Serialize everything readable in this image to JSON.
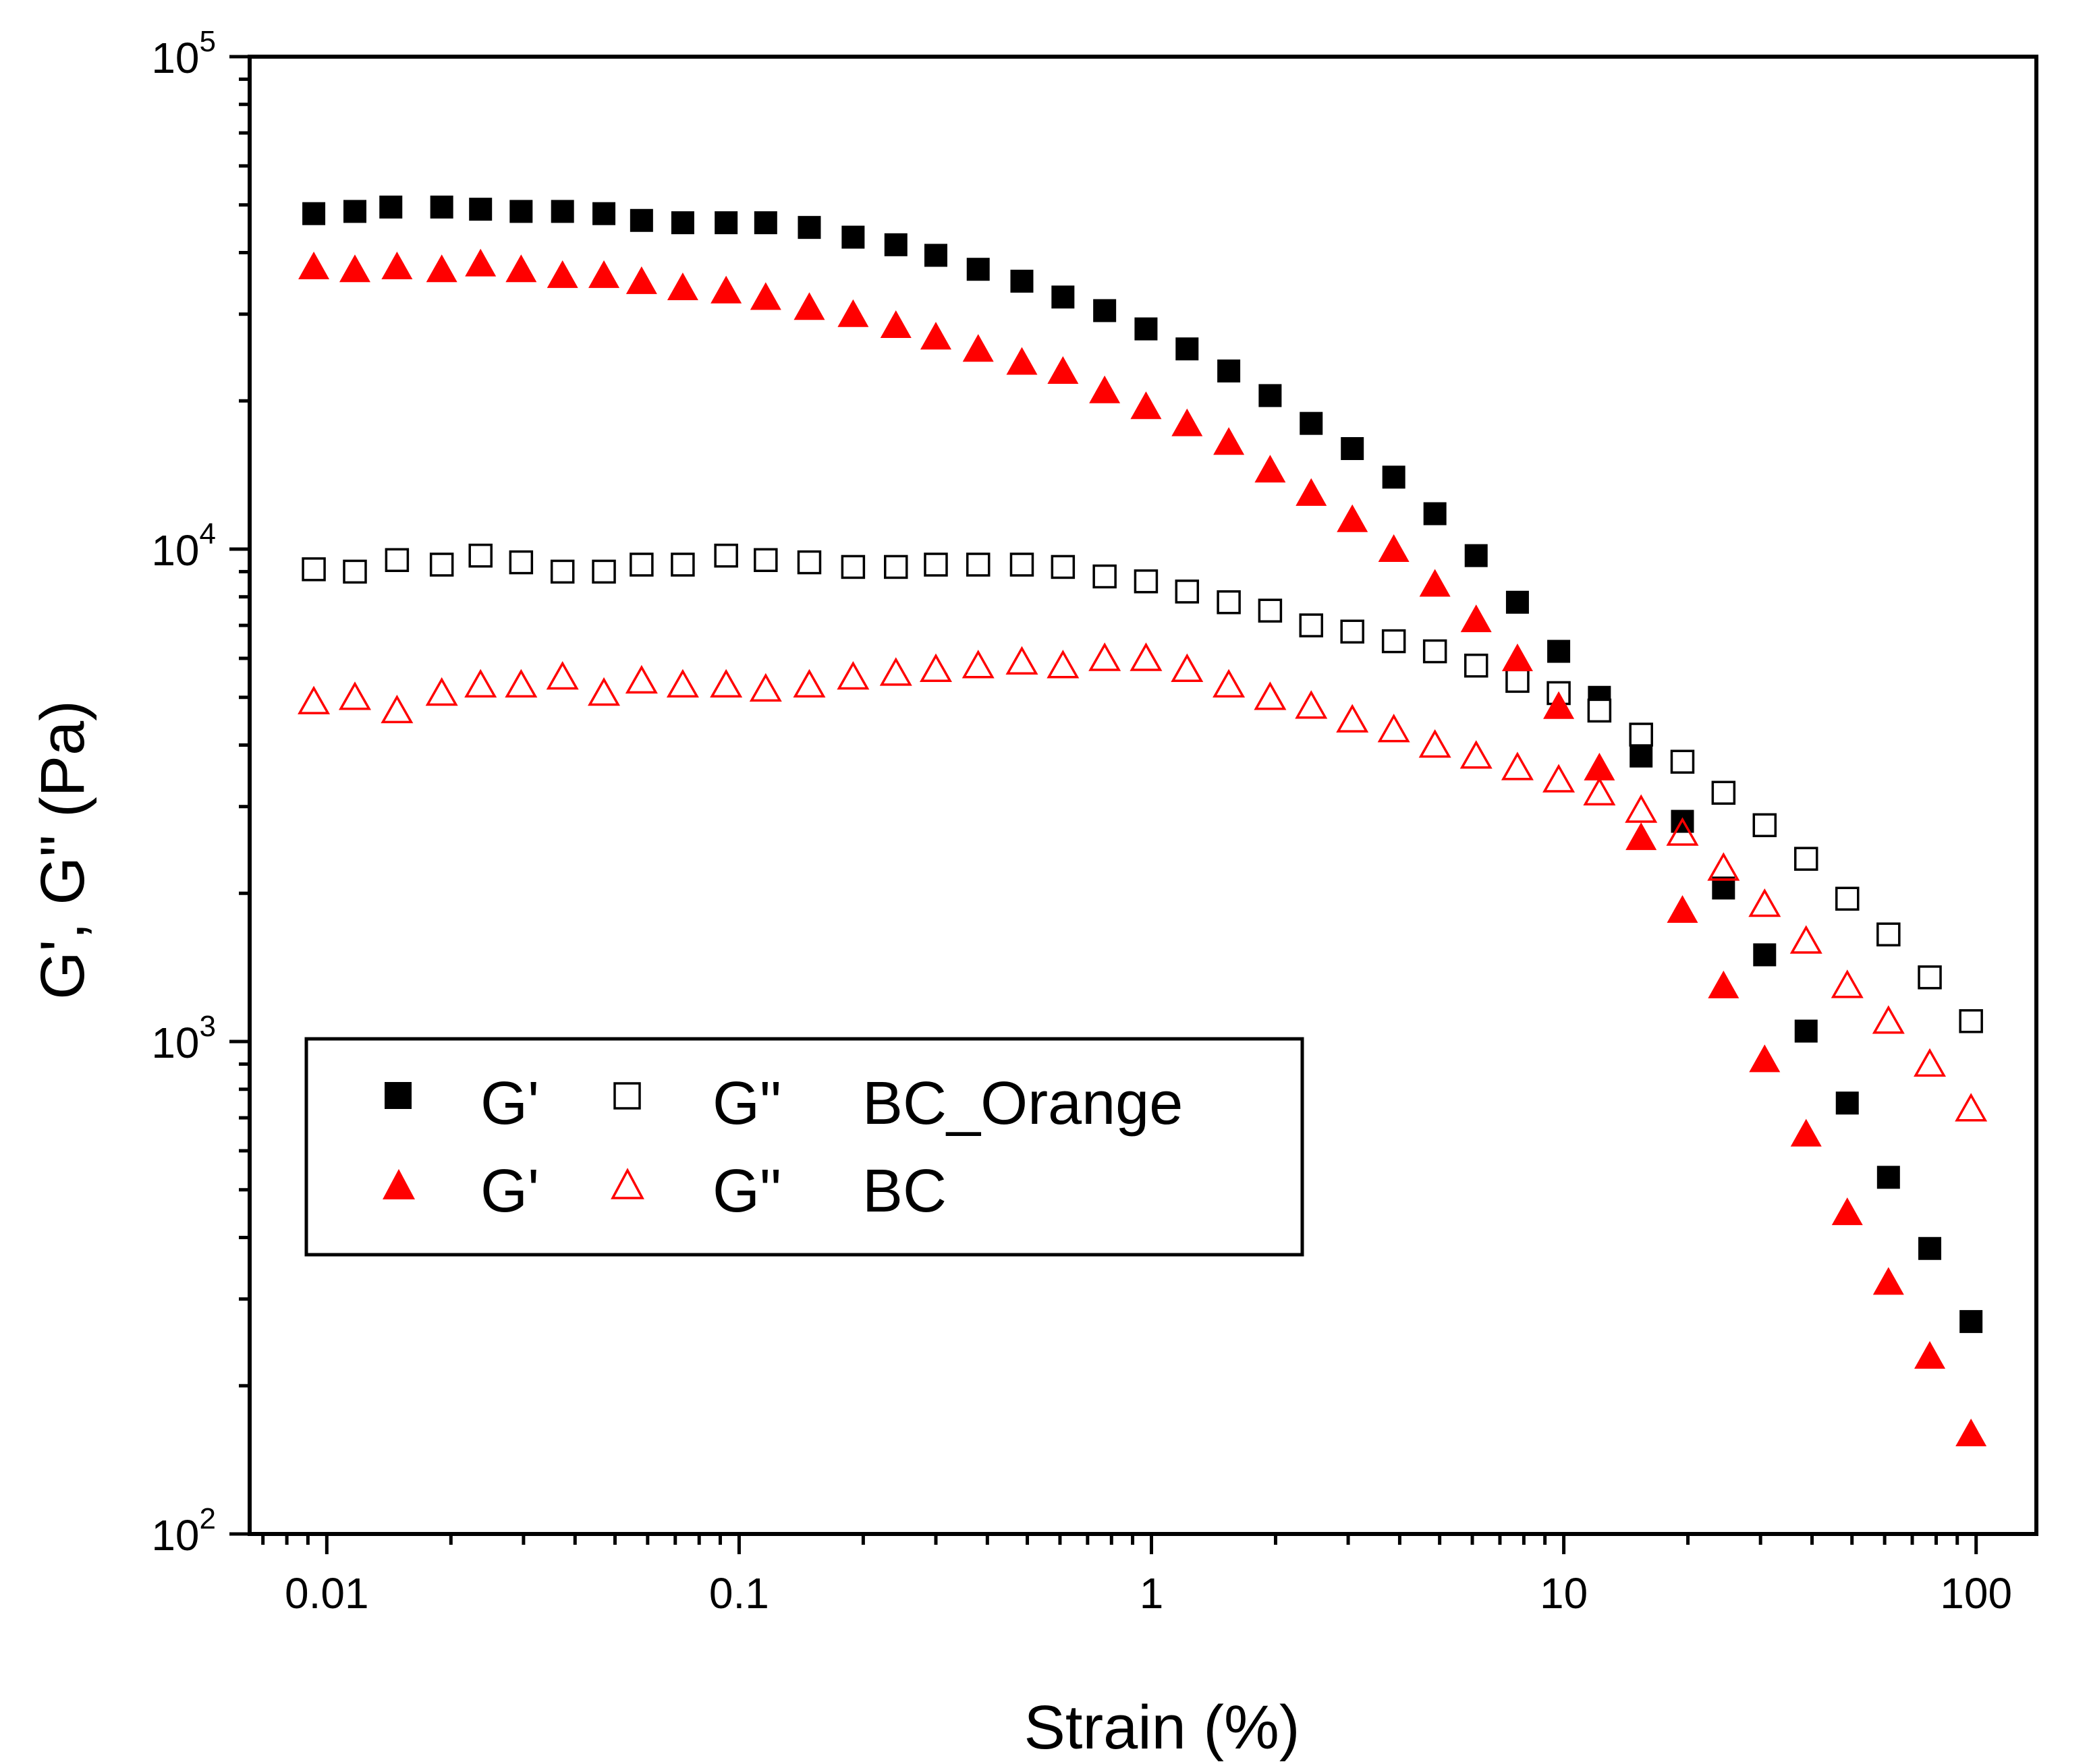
{
  "chart_data": {
    "type": "scatter",
    "xscale": "log",
    "yscale": "log",
    "xlim": [
      0.0065,
      140
    ],
    "ylim": [
      100,
      100000
    ],
    "xlabel": "Strain (%)",
    "ylabel": "G', G\" (Pa)",
    "x_ticks": [
      {
        "value": 0.01,
        "label": "0.01"
      },
      {
        "value": 0.1,
        "label": "0.1"
      },
      {
        "value": 1,
        "label": "1"
      },
      {
        "value": 10,
        "label": "10"
      },
      {
        "value": 100,
        "label": "100"
      }
    ],
    "y_ticks": [
      {
        "value": 100,
        "base": "10",
        "exp": "2"
      },
      {
        "value": 1000,
        "base": "10",
        "exp": "3"
      },
      {
        "value": 10000,
        "base": "10",
        "exp": "4"
      },
      {
        "value": 100000,
        "base": "10",
        "exp": "5"
      }
    ],
    "colors": {
      "black": "#000000",
      "red": "#ff0000"
    },
    "legend": {
      "position": "center-left",
      "rows": [
        {
          "modulus_filled": "G'",
          "modulus_open": "G\"",
          "sample": "BC_Orange",
          "marker": "square",
          "color": "#000000"
        },
        {
          "modulus_filled": "G'",
          "modulus_open": "G\"",
          "sample": "BC",
          "marker": "triangle",
          "color": "#ff0000"
        }
      ]
    },
    "series": [
      {
        "name": "G' BC_Orange",
        "marker": "square",
        "filled": true,
        "color": "#000000",
        "x": [
          0.0093,
          0.0117,
          0.0143,
          0.019,
          0.0236,
          0.0296,
          0.0373,
          0.047,
          0.058,
          0.073,
          0.093,
          0.116,
          0.148,
          0.189,
          0.24,
          0.3,
          0.38,
          0.485,
          0.61,
          0.77,
          0.97,
          1.22,
          1.54,
          1.94,
          2.44,
          3.07,
          3.87,
          4.87,
          6.13,
          7.72,
          9.72,
          12.2,
          15.4,
          19.4,
          24.4,
          30.7,
          38.7,
          48.7,
          61.3,
          77.2,
          97.2
        ],
        "y": [
          48000,
          48500,
          49500,
          49500,
          49000,
          48500,
          48500,
          48000,
          46500,
          46000,
          46000,
          46000,
          45000,
          43000,
          41500,
          39500,
          37000,
          35000,
          32500,
          30500,
          28000,
          25500,
          23000,
          20500,
          18000,
          16000,
          14000,
          11800,
          9700,
          7800,
          6200,
          5000,
          3800,
          2800,
          2050,
          1500,
          1050,
          750,
          530,
          380,
          270
        ]
      },
      {
        "name": "G\" BC_Orange",
        "marker": "square",
        "filled": false,
        "color": "#000000",
        "x": [
          0.0093,
          0.0117,
          0.0148,
          0.019,
          0.0236,
          0.0296,
          0.0373,
          0.047,
          0.058,
          0.073,
          0.093,
          0.116,
          0.148,
          0.189,
          0.24,
          0.3,
          0.38,
          0.485,
          0.61,
          0.77,
          0.97,
          1.22,
          1.54,
          1.94,
          2.44,
          3.07,
          3.87,
          4.87,
          6.13,
          7.72,
          9.72,
          12.2,
          15.4,
          19.4,
          24.4,
          30.7,
          38.7,
          48.7,
          61.3,
          77.2,
          97.2
        ],
        "y": [
          9100,
          9000,
          9500,
          9300,
          9700,
          9400,
          9000,
          9000,
          9300,
          9300,
          9700,
          9500,
          9400,
          9200,
          9200,
          9300,
          9300,
          9300,
          9200,
          8800,
          8600,
          8200,
          7800,
          7500,
          7000,
          6800,
          6500,
          6200,
          5800,
          5400,
          5100,
          4700,
          4200,
          3700,
          3200,
          2750,
          2350,
          1950,
          1650,
          1350,
          1100
        ]
      },
      {
        "name": "G' BC",
        "marker": "triangle",
        "filled": true,
        "color": "#ff0000",
        "x": [
          0.0093,
          0.0117,
          0.0148,
          0.019,
          0.0236,
          0.0296,
          0.0373,
          0.047,
          0.058,
          0.073,
          0.093,
          0.116,
          0.148,
          0.189,
          0.24,
          0.3,
          0.38,
          0.485,
          0.61,
          0.77,
          0.97,
          1.22,
          1.54,
          1.94,
          2.44,
          3.07,
          3.87,
          4.87,
          6.13,
          7.72,
          9.72,
          12.2,
          15.4,
          19.4,
          24.4,
          30.7,
          38.7,
          48.7,
          61.3,
          77.2,
          97.2
        ],
        "y": [
          37500,
          37000,
          37500,
          37000,
          38000,
          37000,
          36000,
          36000,
          35000,
          34000,
          33500,
          32500,
          31000,
          30000,
          28500,
          27000,
          25500,
          24000,
          23000,
          21000,
          19500,
          18000,
          16500,
          14500,
          13000,
          11500,
          10000,
          8500,
          7200,
          6000,
          4800,
          3600,
          2600,
          1850,
          1300,
          920,
          650,
          450,
          325,
          230,
          160
        ]
      },
      {
        "name": "G\" BC",
        "marker": "triangle",
        "filled": false,
        "color": "#ff0000",
        "x": [
          0.0093,
          0.0117,
          0.0148,
          0.019,
          0.0236,
          0.0296,
          0.0373,
          0.047,
          0.058,
          0.073,
          0.093,
          0.116,
          0.148,
          0.189,
          0.24,
          0.3,
          0.38,
          0.485,
          0.61,
          0.77,
          0.97,
          1.22,
          1.54,
          1.94,
          2.44,
          3.07,
          3.87,
          4.87,
          6.13,
          7.72,
          9.72,
          12.2,
          15.4,
          19.4,
          24.4,
          30.7,
          38.7,
          48.7,
          61.3,
          77.2,
          97.2
        ],
        "y": [
          4900,
          5000,
          4700,
          5100,
          5300,
          5300,
          5500,
          5100,
          5400,
          5300,
          5300,
          5200,
          5300,
          5500,
          5600,
          5700,
          5800,
          5900,
          5800,
          6000,
          6000,
          5700,
          5300,
          5000,
          4800,
          4500,
          4300,
          4000,
          3800,
          3600,
          3400,
          3200,
          2950,
          2650,
          2250,
          1900,
          1600,
          1300,
          1100,
          900,
          730
        ]
      }
    ]
  }
}
